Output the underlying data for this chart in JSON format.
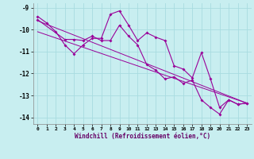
{
  "xlabel": "Windchill (Refroidissement éolien,°C)",
  "background_color": "#c8eef0",
  "grid_color": "#a8dce0",
  "line_color": "#990099",
  "xlim": [
    -0.5,
    23.5
  ],
  "ylim": [
    -14.3,
    -8.8
  ],
  "xticks": [
    0,
    1,
    2,
    3,
    4,
    5,
    6,
    7,
    8,
    9,
    10,
    11,
    12,
    13,
    14,
    15,
    16,
    17,
    18,
    19,
    20,
    21,
    22,
    23
  ],
  "yticks": [
    -14,
    -13,
    -12,
    -11,
    -10,
    -9
  ],
  "line1_x": [
    0,
    1,
    2,
    3,
    4,
    5,
    6,
    7,
    8,
    9,
    10,
    11,
    12,
    13,
    14,
    15,
    16,
    17,
    18,
    19,
    20,
    21,
    22,
    23
  ],
  "line1_y": [
    -9.4,
    -9.7,
    -10.1,
    -10.7,
    -11.1,
    -10.7,
    -10.4,
    -10.4,
    -9.3,
    -9.15,
    -9.8,
    -10.5,
    -10.15,
    -10.35,
    -10.5,
    -11.65,
    -11.8,
    -12.2,
    -11.05,
    -12.25,
    -13.55,
    -13.2,
    -13.4,
    -13.35
  ],
  "line2_x": [
    0,
    3,
    4,
    5,
    6,
    7,
    8,
    9,
    10,
    11,
    12,
    13,
    14,
    15,
    16,
    17,
    18,
    19,
    20,
    21,
    22,
    23
  ],
  "line2_y": [
    -9.55,
    -10.45,
    -10.45,
    -10.5,
    -10.3,
    -10.5,
    -10.5,
    -9.8,
    -10.3,
    -10.7,
    -11.6,
    -11.85,
    -12.25,
    -12.15,
    -12.45,
    -12.3,
    -13.2,
    -13.55,
    -13.85,
    -13.2,
    -13.4,
    -13.35
  ],
  "line3_x": [
    0,
    23
  ],
  "line3_y": [
    -9.6,
    -13.35
  ],
  "line4_x": [
    0,
    23
  ],
  "line4_y": [
    -10.1,
    -13.35
  ]
}
